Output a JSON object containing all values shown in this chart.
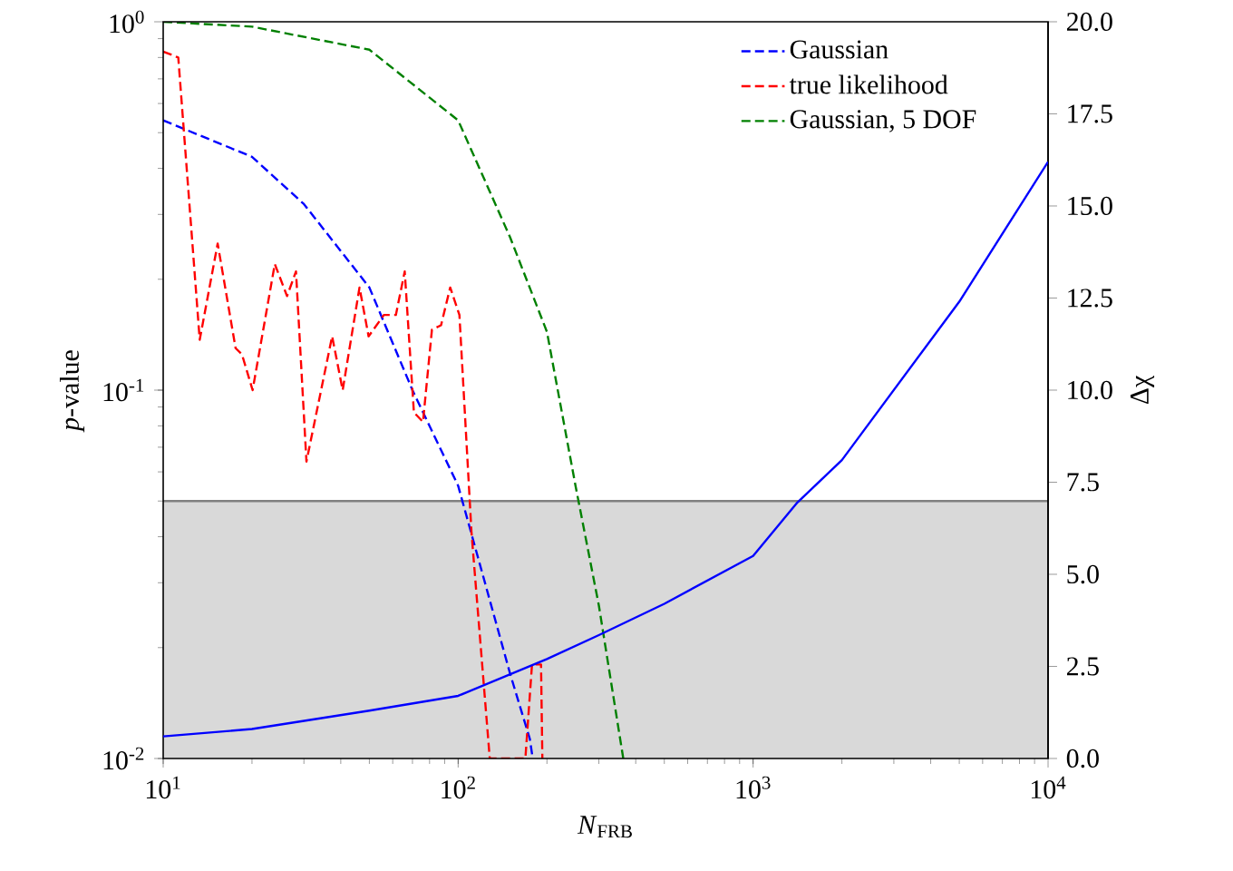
{
  "chart_data": {
    "type": "line",
    "xlabel": "*N*$_{FRB}$",
    "ylabel": "*p*-value",
    "y2label": "Δχ",
    "log": "xy",
    "xlim": [
      10,
      10000
    ],
    "ylim": [
      0.01,
      1
    ],
    "y2lim": [
      0,
      20
    ],
    "xticks": [
      {
        "value": 10,
        "label": "10$^{1}$"
      },
      {
        "value": 100,
        "label": "10$^{2}$"
      },
      {
        "value": 1000,
        "label": "10$^{3}$"
      },
      {
        "value": 10000,
        "label": "10$^{4}$"
      }
    ],
    "yticks": [
      {
        "value": 0.01,
        "label": "10$^{-2}$"
      },
      {
        "value": 0.1,
        "label": "10$^{-1}$"
      },
      {
        "value": 1,
        "label": "10$^{0}$"
      }
    ],
    "y2ticks": [
      {
        "value": 0,
        "label": "0.0"
      },
      {
        "value": 2.5,
        "label": "2.5"
      },
      {
        "value": 5,
        "label": "5.0"
      },
      {
        "value": 7.5,
        "label": "7.5"
      },
      {
        "value": 10,
        "label": "10.0"
      },
      {
        "value": 12.5,
        "label": "12.5"
      },
      {
        "value": 15,
        "label": "15.0"
      },
      {
        "value": 17.5,
        "label": "17.5"
      },
      {
        "value": 20,
        "label": "20.0"
      }
    ],
    "legend": "top right",
    "bands": [
      {
        "axis": "y",
        "from": 0.01,
        "to": 0.05,
        "color": "#d9d9d9"
      }
    ],
    "ref_lines": [
      {
        "axis": "y",
        "value": 0.05,
        "color": "#808080"
      }
    ],
    "series": [
      {
        "name": "Gaussian",
        "color": "#0000ff",
        "line_style": "dashed",
        "x": [
          10,
          20,
          30,
          50,
          70,
          100,
          150,
          175,
          179
        ],
        "values": [
          0.54,
          0.43,
          0.32,
          0.19,
          0.1,
          0.055,
          0.017,
          0.0113,
          0.01
        ]
      },
      {
        "name": "true likelihood",
        "color": "#ff0000",
        "line_style": "dashed",
        "x": [
          10,
          11.25,
          13.3,
          15.3,
          17.6,
          18.5,
          20.1,
          23.9,
          26.3,
          28.2,
          30.6,
          37.4,
          40.6,
          46.3,
          49.7,
          56,
          61.5,
          65.9,
          70.8,
          76,
          81.5,
          87.5,
          94,
          101,
          111,
          128,
          169,
          178,
          191,
          193
        ],
        "values": [
          0.83,
          0.8,
          0.137,
          0.25,
          0.13,
          0.125,
          0.1,
          0.22,
          0.18,
          0.21,
          0.064,
          0.14,
          0.1,
          0.19,
          0.14,
          0.16,
          0.16,
          0.21,
          0.087,
          0.082,
          0.146,
          0.15,
          0.19,
          0.16,
          0.041,
          0.01,
          0.01,
          0.018,
          0.018,
          0.01
        ]
      },
      {
        "name": "Gaussian, 5 DOF",
        "color": "#008000",
        "line_style": "dashed",
        "x": [
          10,
          20,
          50,
          100,
          150,
          200,
          250,
          300,
          363
        ],
        "values": [
          1.0,
          0.97,
          0.84,
          0.54,
          0.26,
          0.144,
          0.055,
          0.026,
          0.01
        ]
      },
      {
        "color": "#0000ff",
        "line_style": "solid",
        "axis": "y2",
        "x": [
          10,
          20,
          50,
          100,
          200,
          300,
          500,
          1000,
          1413,
          2000,
          5000,
          10000
        ],
        "values": [
          0.6,
          0.8,
          1.3,
          1.7,
          2.7,
          3.35,
          4.2,
          5.5,
          6.95,
          8.1,
          12.4,
          16.2
        ]
      }
    ]
  }
}
